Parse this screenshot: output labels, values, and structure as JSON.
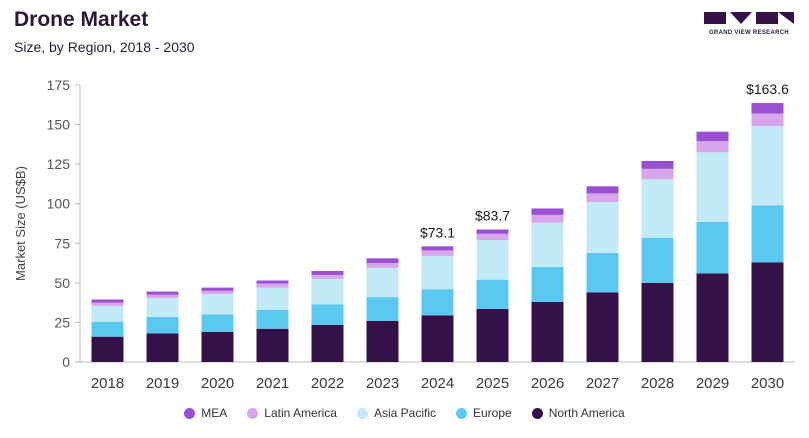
{
  "header": {
    "title": "Drone Market",
    "subtitle": "Size, by Region, 2018 - 2030"
  },
  "logo": {
    "caption": "GRAND VIEW RESEARCH"
  },
  "chart_data": {
    "type": "bar",
    "stacked": true,
    "ylabel": "Market Size (US$B)",
    "xlabel": "",
    "ylim": [
      0,
      175
    ],
    "yticks": [
      0,
      25,
      50,
      75,
      100,
      125,
      150,
      175
    ],
    "grid": false,
    "legend_position": "bottom",
    "categories": [
      "2018",
      "2019",
      "2020",
      "2021",
      "2022",
      "2023",
      "2024",
      "2025",
      "2026",
      "2027",
      "2028",
      "2029",
      "2030"
    ],
    "series": [
      {
        "name": "North America",
        "color": "#35114a",
        "values": [
          16,
          18,
          19,
          21,
          23.5,
          26,
          29.5,
          33.5,
          38,
          44,
          50,
          56,
          63
        ]
      },
      {
        "name": "Europe",
        "color": "#5bc8f0",
        "values": [
          9.5,
          10.5,
          11,
          12,
          13,
          15,
          16.5,
          18.5,
          22,
          25,
          28.5,
          32.5,
          36
        ]
      },
      {
        "name": "Asia Pacific",
        "color": "#c3eaf7",
        "values": [
          10,
          12,
          13,
          14,
          16,
          18.5,
          21,
          25,
          28,
          32,
          37,
          44,
          50
        ]
      },
      {
        "name": "Latin America",
        "color": "#d7a6ea",
        "values": [
          2,
          2,
          2,
          2.5,
          2.5,
          3,
          3.5,
          4,
          5,
          5.5,
          6.5,
          7,
          8
        ]
      },
      {
        "name": "MEA",
        "color": "#9b4fd3",
        "values": [
          2,
          2,
          2,
          2,
          2.5,
          3,
          2.6,
          2.7,
          4,
          4.5,
          5,
          6,
          6.6
        ]
      }
    ],
    "annotations": [
      {
        "category": "2024",
        "label": "$73.1"
      },
      {
        "category": "2025",
        "label": "$83.7"
      },
      {
        "category": "2030",
        "label": "$163.6"
      }
    ],
    "legend_order": [
      "MEA",
      "Latin America",
      "Asia Pacific",
      "Europe",
      "North America"
    ]
  }
}
